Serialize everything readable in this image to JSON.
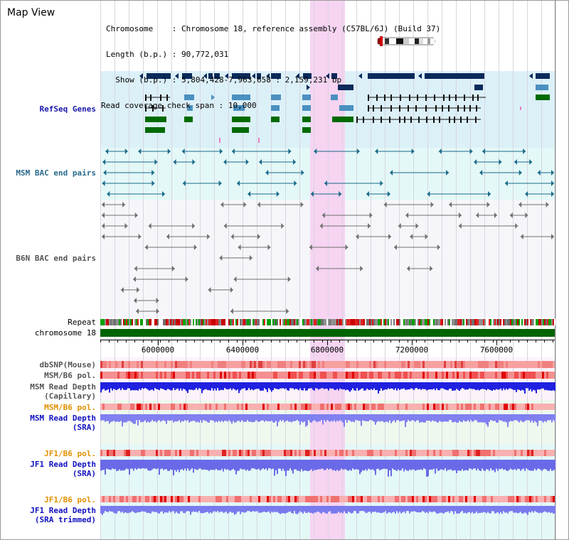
{
  "title": "Map View",
  "info": {
    "chromosome_label": "Chromosome",
    "chromosome_value": "Chromosome 18, reference assembly (C57BL/6J) (Build 37)",
    "length_label": "Length (b.p.)",
    "length_value": "90,772,031",
    "show_label": "Show (b.p.)",
    "show_value": "5,804,428-7,963,658 : 2,159,231 bp",
    "span_label": "Read coverage check span",
    "span_value": "10,000"
  },
  "ruler": {
    "ticks": [
      "6000000",
      "6400000",
      "6800000",
      "7200000",
      "7600000"
    ]
  },
  "tracks": {
    "refseq": "RefSeq Genes",
    "msm_bac": "MSM BAC end pairs",
    "b6n_bac": "B6N BAC end pairs",
    "repeat": "Repeat",
    "chromosome": "chromosome 18",
    "dbsnp": "dbSNP(Mouse)",
    "msm_pol": "MSM/B6 pol.",
    "msm_depth_cap_1": "MSM Read Depth",
    "msm_depth_cap_2": "(Capillary)",
    "msm_pol_sra": "MSM/B6 pol.",
    "msm_depth_sra_1": "MSM Read Depth",
    "msm_depth_sra_2": "(SRA)",
    "jf1_pol": "JF1/B6 pol.",
    "jf1_depth_1": "JF1 Read Depth",
    "jf1_depth_2": "(SRA)",
    "jf1_pol_trim": "JF1/B6 pol.",
    "jf1_trim_1": "JF1 Read Depth",
    "jf1_trim_2": "(SRA trimmed)"
  },
  "colors": {
    "refseq_label": "#1a1aa8",
    "bac_label": "#2a6a8a",
    "pol_orange": "#e09000",
    "depth_blue": "#1010c0",
    "highlight": "#f6d4f2",
    "chromosome_green": "#006400"
  }
}
